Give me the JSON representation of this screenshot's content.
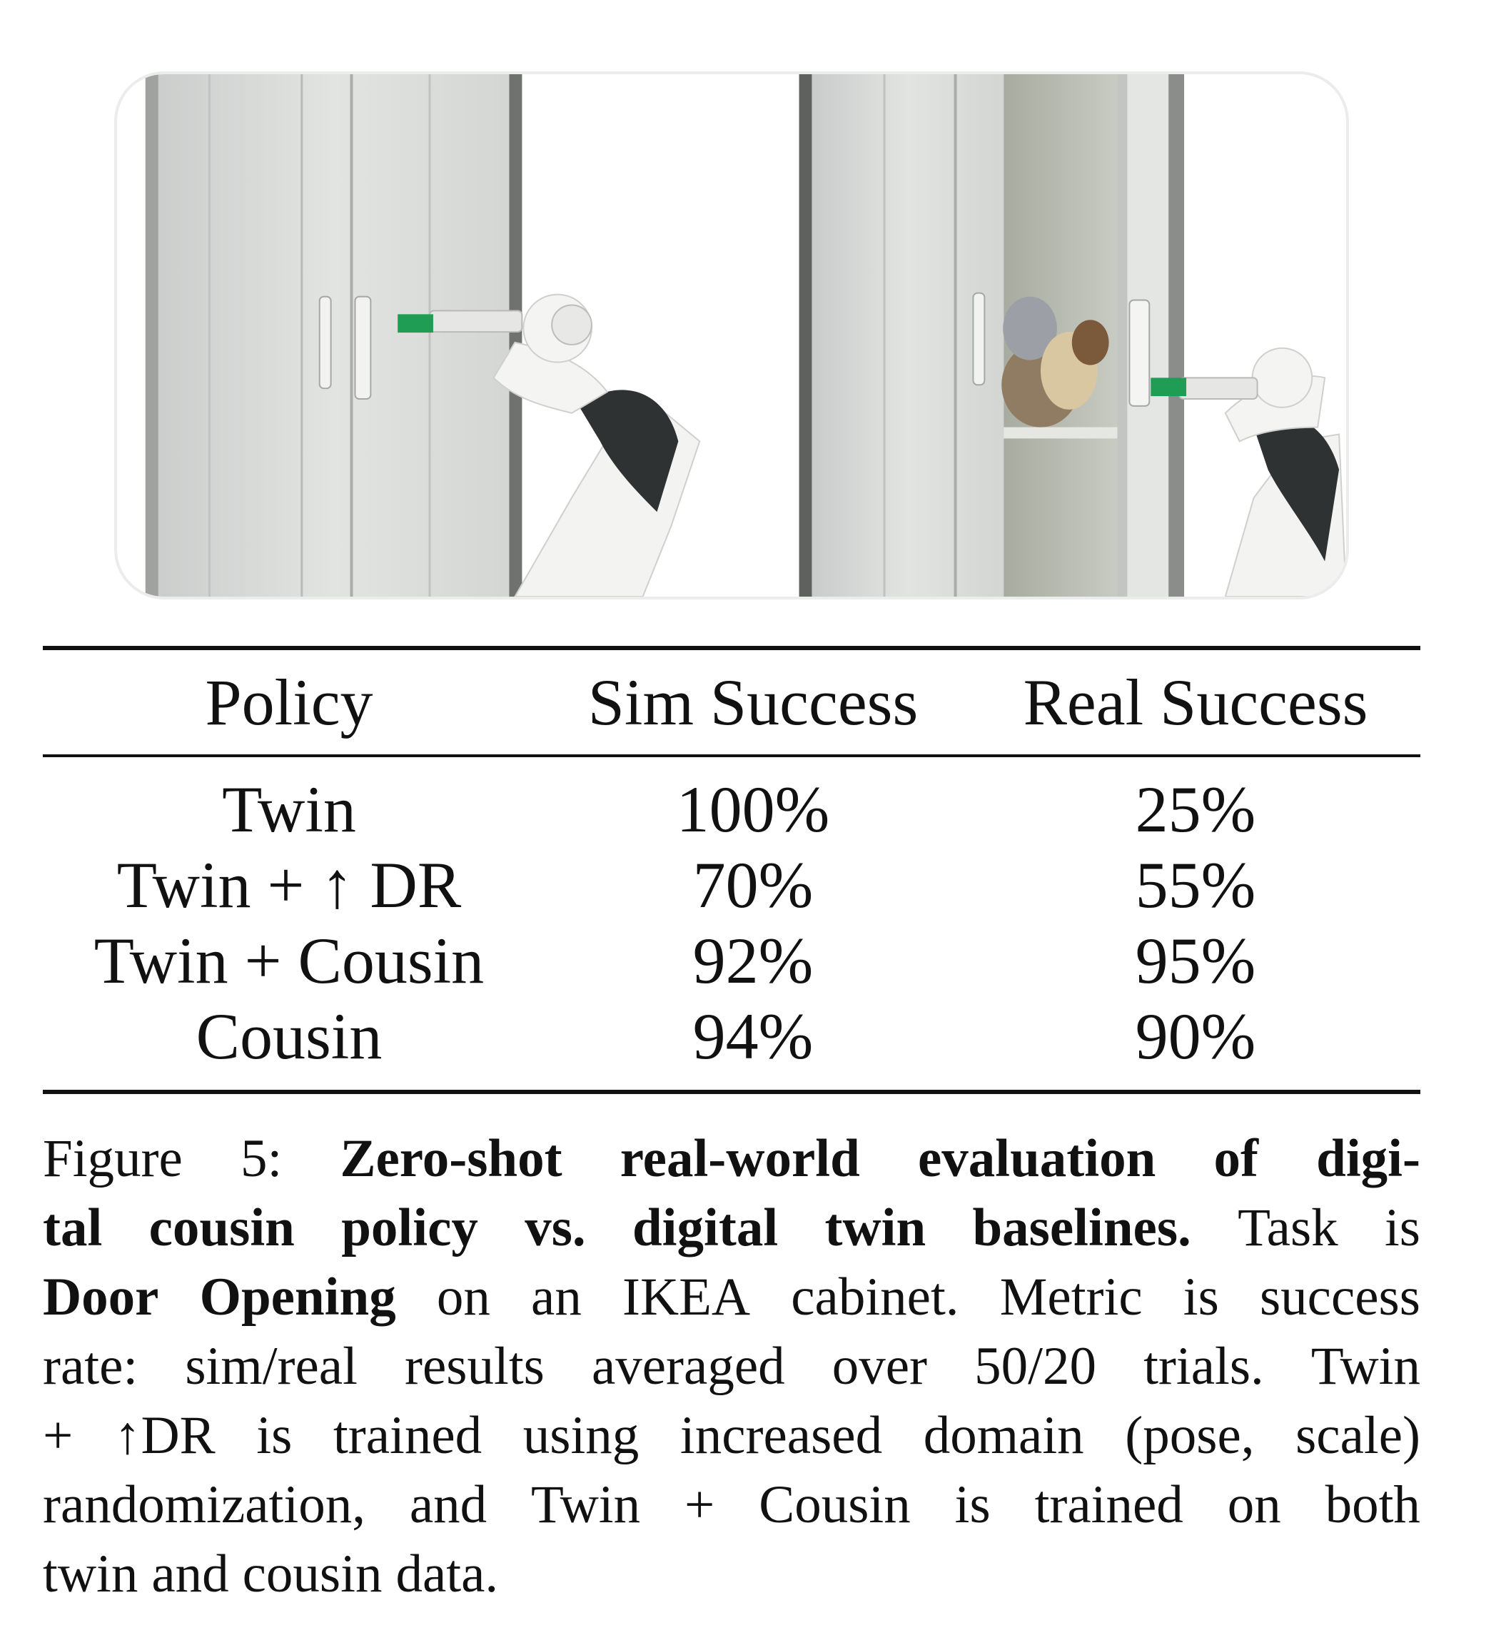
{
  "table": {
    "headers": [
      "Policy",
      "Sim Success",
      "Real Success"
    ],
    "rows": [
      {
        "policy": "Twin",
        "sim": "100%",
        "real": "25%"
      },
      {
        "policy": "Twin + ↑ DR",
        "sim": "70%",
        "real": "55%"
      },
      {
        "policy": "Twin + Cousin",
        "sim": "92%",
        "real": "95%"
      },
      {
        "policy": "Cousin",
        "sim": "94%",
        "real": "90%"
      }
    ]
  },
  "caption": {
    "lines": [
      [
        {
          "t": "Figure",
          "b": false
        },
        {
          "t": "5:",
          "b": false
        },
        {
          "t": "Zero-shot",
          "b": true
        },
        {
          "t": "real-world",
          "b": true
        },
        {
          "t": "evaluation",
          "b": true
        },
        {
          "t": "of",
          "b": true
        },
        {
          "t": "digi-",
          "b": true
        }
      ],
      [
        {
          "t": "tal",
          "b": true
        },
        {
          "t": "cousin",
          "b": true
        },
        {
          "t": "policy",
          "b": true
        },
        {
          "t": "vs.",
          "b": true
        },
        {
          "t": "digital",
          "b": true
        },
        {
          "t": "twin",
          "b": true
        },
        {
          "t": "baselines.",
          "b": true
        },
        {
          "t": "Task",
          "b": false
        },
        {
          "t": "is",
          "b": false
        }
      ],
      [
        {
          "t": "Door",
          "b": true
        },
        {
          "t": "Opening",
          "b": true
        },
        {
          "t": "on",
          "b": false
        },
        {
          "t": "an",
          "b": false
        },
        {
          "t": "IKEA",
          "b": false
        },
        {
          "t": "cabinet.",
          "b": false
        },
        {
          "t": "Metric",
          "b": false
        },
        {
          "t": "is",
          "b": false
        },
        {
          "t": "success",
          "b": false
        }
      ],
      [
        {
          "t": "rate:",
          "b": false
        },
        {
          "t": "sim/real",
          "b": false
        },
        {
          "t": "results",
          "b": false
        },
        {
          "t": "averaged",
          "b": false
        },
        {
          "t": "over",
          "b": false
        },
        {
          "t": "50/20",
          "b": false
        },
        {
          "t": "trials.",
          "b": false
        },
        {
          "t": "Twin",
          "b": false
        }
      ],
      [
        {
          "t": "+",
          "b": false
        },
        {
          "t": "↑DR",
          "b": false
        },
        {
          "t": "is",
          "b": false
        },
        {
          "t": "trained",
          "b": false
        },
        {
          "t": "using",
          "b": false
        },
        {
          "t": "increased",
          "b": false
        },
        {
          "t": "domain",
          "b": false
        },
        {
          "t": "(pose,",
          "b": false
        },
        {
          "t": "scale)",
          "b": false
        }
      ],
      [
        {
          "t": "randomization,",
          "b": false
        },
        {
          "t": "and",
          "b": false
        },
        {
          "t": "Twin",
          "b": false
        },
        {
          "t": "+",
          "b": false
        },
        {
          "t": "Cousin",
          "b": false
        },
        {
          "t": "is",
          "b": false
        },
        {
          "t": "trained",
          "b": false
        },
        {
          "t": "on",
          "b": false
        },
        {
          "t": "both",
          "b": false
        }
      ],
      [
        {
          "t": "twin",
          "b": false
        },
        {
          "t": "and",
          "b": false
        },
        {
          "t": "cousin",
          "b": false
        },
        {
          "t": "data.",
          "b": false
        }
      ]
    ]
  }
}
